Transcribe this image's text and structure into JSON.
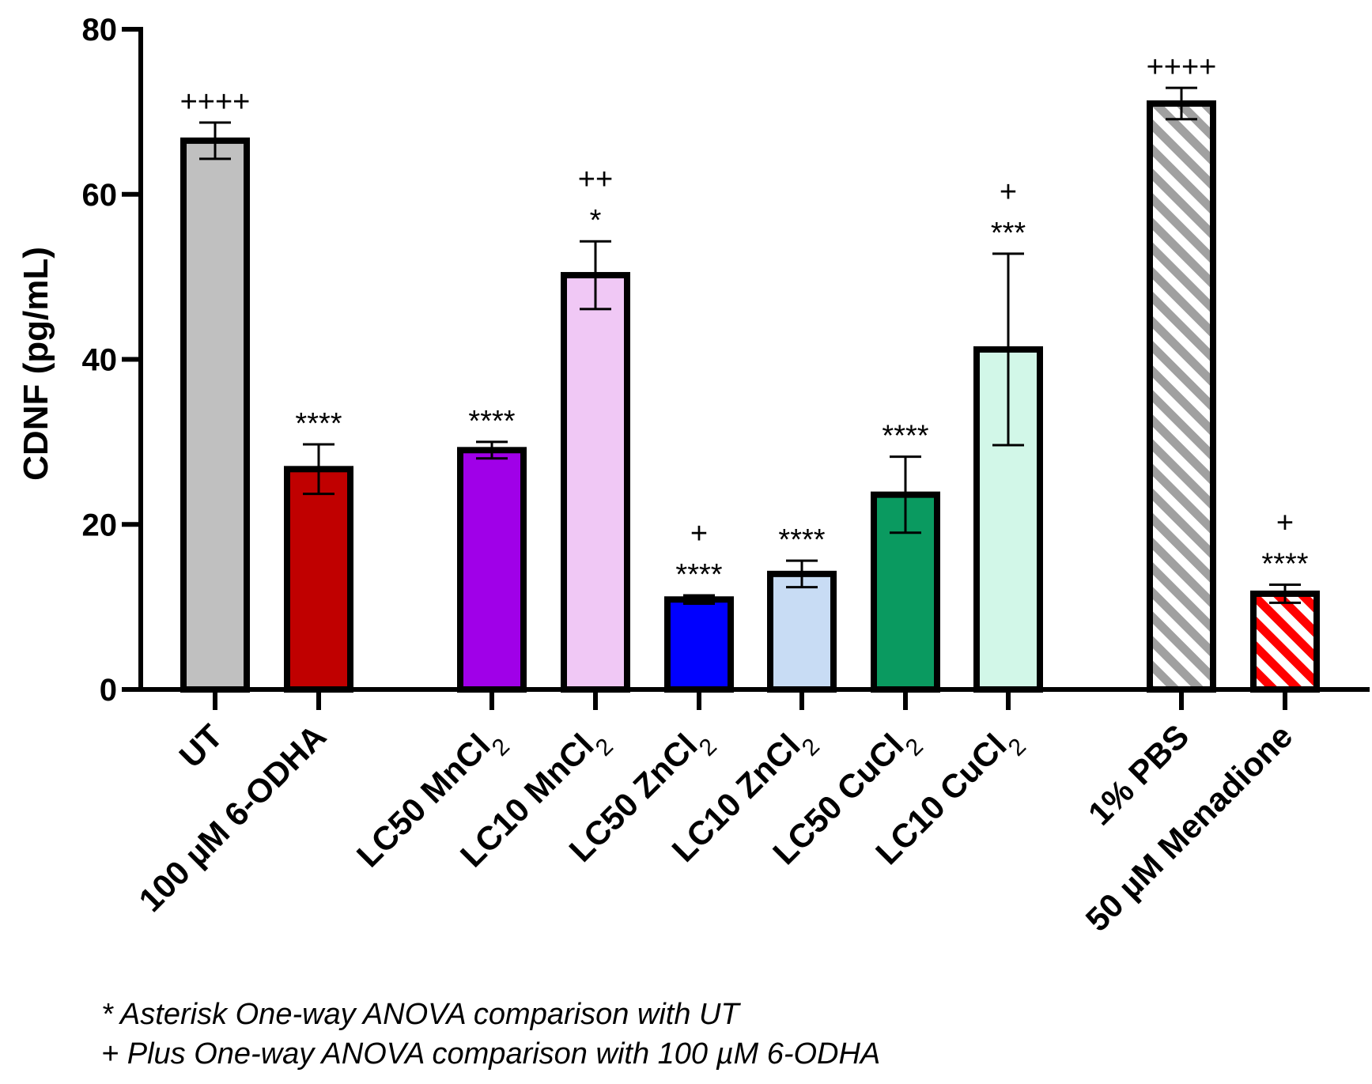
{
  "chart_data": {
    "type": "bar",
    "ylabel": "CDNF (pg/mL)",
    "ylim": [
      0,
      80
    ],
    "yticks": [
      0,
      20,
      40,
      60,
      80
    ],
    "groups": [
      {
        "label": "UT",
        "sub": "",
        "value": 66.5,
        "error": 2.2,
        "sig": [
          "++++"
        ],
        "color": "#c0c0c0",
        "pattern": "solid"
      },
      {
        "label": "100 µM 6-ODHA",
        "sub": "",
        "value": 26.7,
        "error": 3.0,
        "sig": [
          "****"
        ],
        "color": "#c00000",
        "pattern": "solid"
      },
      {
        "label": "LC50 MnCl",
        "sub": "2",
        "value": 29.0,
        "error": 1.0,
        "sig": [
          "****"
        ],
        "color": "#a000e8",
        "pattern": "solid"
      },
      {
        "label": "LC10 MnCl",
        "sub": "2",
        "value": 50.2,
        "error": 4.1,
        "sig": [
          "++",
          "*"
        ],
        "color": "#f0c8f5",
        "pattern": "solid"
      },
      {
        "label": "LC50 ZnCl",
        "sub": "2",
        "value": 10.9,
        "error": 0.5,
        "sig": [
          "+",
          "****"
        ],
        "color": "#0000ff",
        "pattern": "solid"
      },
      {
        "label": "LC10 ZnCl",
        "sub": "2",
        "value": 14.0,
        "error": 1.6,
        "sig": [
          "****"
        ],
        "color": "#c8dcf4",
        "pattern": "solid"
      },
      {
        "label": "LC50 CuCl",
        "sub": "2",
        "value": 23.6,
        "error": 4.6,
        "sig": [
          "****"
        ],
        "color": "#0a9a60",
        "pattern": "solid"
      },
      {
        "label": "LC10 CuCl",
        "sub": "2",
        "value": 41.2,
        "error": 11.6,
        "sig": [
          "+",
          "***"
        ],
        "color": "#d2f7e8",
        "pattern": "solid"
      },
      {
        "label": "1% PBS",
        "sub": "",
        "value": 71.0,
        "error": 1.9,
        "sig": [
          "++++"
        ],
        "color": "#a0a0a0",
        "pattern": "hatch"
      },
      {
        "label": "50 µM Menadione",
        "sub": "",
        "value": 11.6,
        "error": 1.1,
        "sig": [
          "+",
          "****"
        ],
        "color": "#ff0000",
        "pattern": "hatch"
      }
    ]
  },
  "footnotes": {
    "line1": "* Asterisk One-way ANOVA comparison with UT",
    "line2": "+ Plus One-way ANOVA comparison with 100 µM 6-ODHA"
  }
}
